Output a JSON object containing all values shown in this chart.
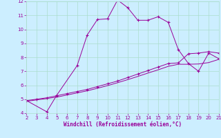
{
  "xlabel": "Windchill (Refroidissement éolien,°C)",
  "xlim": [
    2,
    21
  ],
  "ylim": [
    4,
    12
  ],
  "xticks": [
    2,
    3,
    4,
    5,
    6,
    7,
    8,
    9,
    10,
    11,
    12,
    13,
    14,
    15,
    16,
    17,
    18,
    19,
    20,
    21
  ],
  "yticks": [
    4,
    5,
    6,
    7,
    8,
    9,
    10,
    11,
    12
  ],
  "bg_color": "#cceeff",
  "grid_color": "#aaddcc",
  "line_color": "#990099",
  "line1_x": [
    2,
    4,
    5,
    7,
    8,
    9,
    10,
    11,
    12,
    13,
    14,
    15,
    16,
    17,
    18,
    19,
    20,
    21
  ],
  "line1_y": [
    4.9,
    4.1,
    5.3,
    7.4,
    9.6,
    10.7,
    10.75,
    12.1,
    11.55,
    10.65,
    10.65,
    10.9,
    10.5,
    8.55,
    7.55,
    7.0,
    8.3,
    7.9
  ],
  "line2_x": [
    2,
    3,
    4,
    5,
    6,
    7,
    8,
    9,
    10,
    11,
    12,
    13,
    14,
    15,
    16,
    17,
    18,
    19,
    20,
    21
  ],
  "line2_y": [
    4.9,
    5.0,
    5.1,
    5.25,
    5.4,
    5.55,
    5.7,
    5.9,
    6.1,
    6.3,
    6.55,
    6.8,
    7.05,
    7.3,
    7.55,
    7.6,
    8.25,
    8.3,
    8.4,
    8.3
  ],
  "line3_x": [
    2,
    3,
    4,
    5,
    6,
    7,
    8,
    9,
    10,
    11,
    12,
    13,
    14,
    15,
    16,
    17,
    18,
    19,
    20,
    21
  ],
  "line3_y": [
    4.85,
    4.95,
    5.05,
    5.15,
    5.3,
    5.45,
    5.6,
    5.78,
    5.97,
    6.18,
    6.4,
    6.63,
    6.87,
    7.1,
    7.35,
    7.5,
    7.5,
    7.52,
    7.62,
    7.85
  ]
}
